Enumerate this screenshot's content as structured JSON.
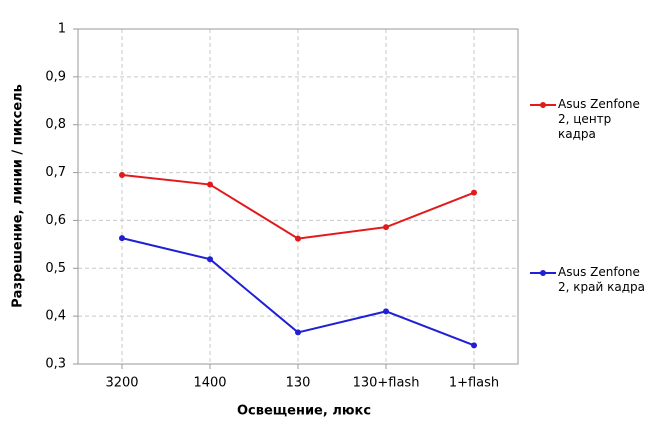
{
  "chart_data": {
    "type": "line",
    "x_label": "Освещение,  люкс",
    "y_label": "Разрешение,  линии  / пиксель",
    "categories": [
      "3200",
      "1400",
      "130",
      "130+flash",
      "1+flash"
    ],
    "series": [
      {
        "name": "Asus Zenfone 2, центр кадра",
        "color": "#e31a1c",
        "values": [
          0.695,
          0.675,
          0.562,
          0.586,
          0.658
        ]
      },
      {
        "name": "Asus Zenfone 2, край кадра",
        "color": "#1f1fd6",
        "values": [
          0.563,
          0.519,
          0.366,
          0.41,
          0.339
        ]
      }
    ],
    "ylim": [
      0.3,
      1
    ],
    "yticks": [
      {
        "value": 0.3,
        "label": "0,3"
      },
      {
        "value": 0.4,
        "label": "0,4"
      },
      {
        "value": 0.5,
        "label": "0,5"
      },
      {
        "value": 0.6,
        "label": "0,6"
      },
      {
        "value": 0.7,
        "label": "0,7"
      },
      {
        "value": 0.8,
        "label": "0,8"
      },
      {
        "value": 0.9,
        "label": "0,9"
      },
      1
    ],
    "grid": true,
    "legend": "right"
  }
}
